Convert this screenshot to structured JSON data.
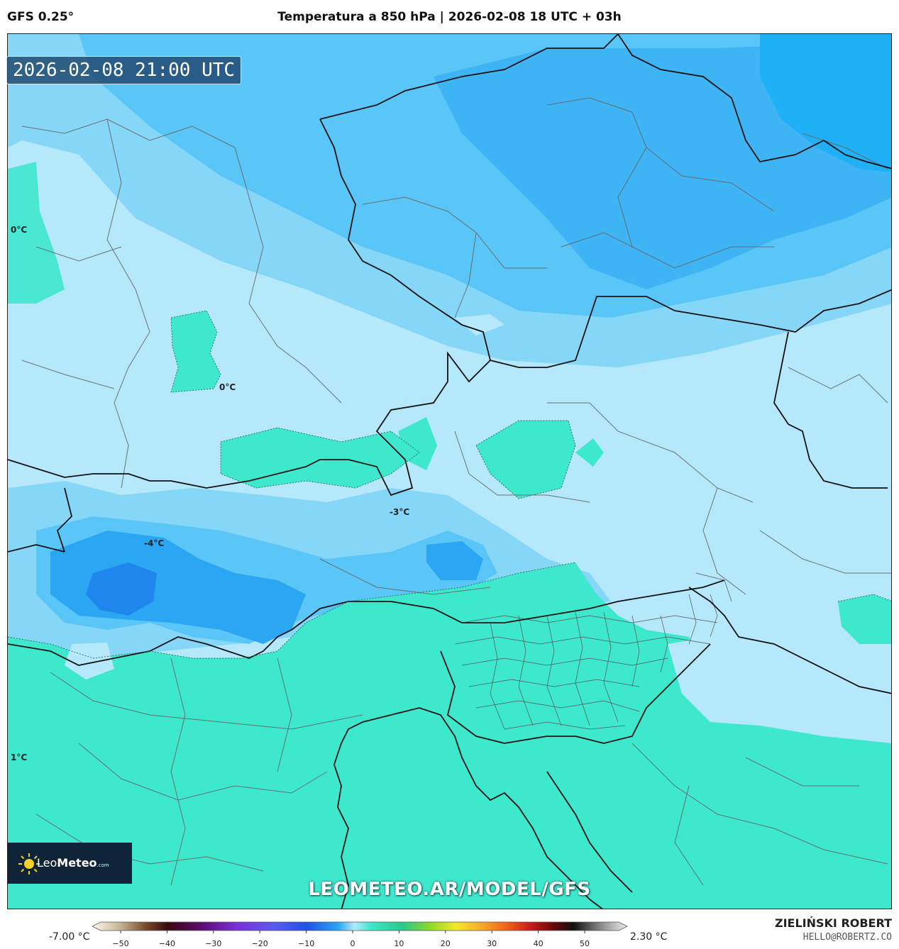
{
  "header": {
    "model": "GFS 0.25°",
    "title": "Temperatura a 850 hPa | 2026-02-08 18 UTC + 03h"
  },
  "map": {
    "timestamp": "2026-02-08 21:00 UTC",
    "contour_labels": [
      "0°C",
      "0°C",
      "-3°C",
      "-4°C",
      "1°C"
    ],
    "watermark": "LEOMETEO.AR/MODEL/GFS",
    "colors": {
      "cold_core": "#1f86ee",
      "very_cold": "#2aa6f2",
      "cold": "#59c6f7",
      "cool": "#86d6f8",
      "near_zero": "#b5e8fb",
      "warm": "#3ee8cd",
      "sea": "#3ae6cf",
      "northeast_cold": "#1fb0f5",
      "border": "#111111",
      "admin_line": "#666666"
    }
  },
  "logo": {
    "brand_light": "Leo",
    "brand_bold": "Meteo",
    "suffix": ".com"
  },
  "colorbar": {
    "min_label": "-7.00 °C",
    "max_label": "2.30 °C",
    "ticks": [
      "−50",
      "−40",
      "−30",
      "−20",
      "−10",
      "0",
      "10",
      "20",
      "30",
      "40",
      "50"
    ]
  },
  "credits": {
    "author": "ZIELIŃSKI ROBERT",
    "email": "HELLO@ROBERTZ.CO"
  }
}
